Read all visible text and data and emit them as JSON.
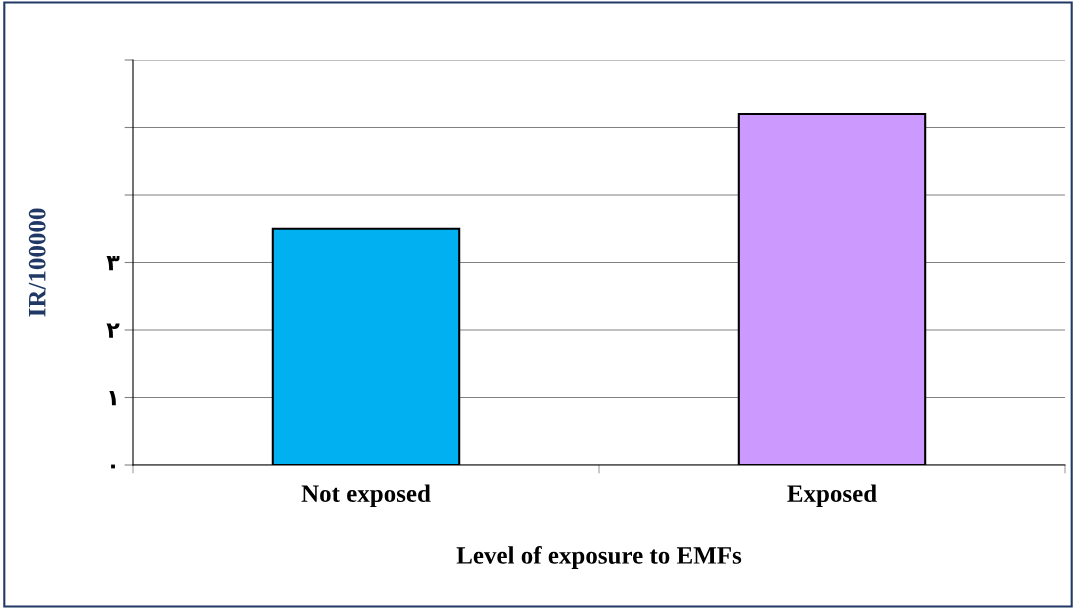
{
  "chart_data": {
    "type": "bar",
    "xlabel": "Level of exposure to EMFs",
    "ylabel": "IR/100000",
    "categories": [
      "Not exposed",
      "Exposed"
    ],
    "values": [
      3.5,
      5.2
    ],
    "colors": [
      "#00b0f0",
      "#cc99ff"
    ],
    "ylim": [
      0,
      6
    ],
    "yticks": [
      {
        "value": 0,
        "label": "٠"
      },
      {
        "value": 1,
        "label": "١"
      },
      {
        "value": 2,
        "label": "٢"
      },
      {
        "value": 3,
        "label": "٣"
      },
      {
        "value": 4,
        "label": null
      },
      {
        "value": 5,
        "label": null
      },
      {
        "value": 6,
        "label": null
      }
    ],
    "grid": "y"
  }
}
